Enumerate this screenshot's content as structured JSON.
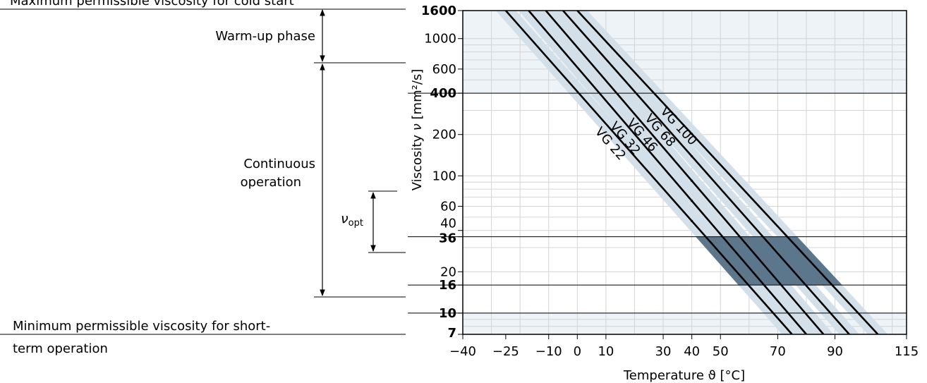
{
  "annotations": {
    "cold_start": "Maximum permissible viscosity for cold start",
    "warm_up": "Warm-up phase",
    "continuous_line1": "Continuous",
    "continuous_line2": "operation",
    "nu_opt_symbol": "ν",
    "nu_opt_sub": "opt",
    "min_line1": "Minimum permissible viscosity for short-",
    "min_line2": "term operation"
  },
  "chart_data": {
    "type": "line",
    "title": "",
    "xlabel": "Temperature ϑ [°C]",
    "ylabel_prefix": "Viscosity ",
    "ylabel_symbol": "ν",
    "ylabel_unit": " [mm²/s]",
    "x_scale": "linear",
    "y_scale": "log",
    "xlim": [
      -40,
      115
    ],
    "ylim": [
      7,
      1600
    ],
    "grid": true,
    "x_ticks": [
      {
        "value": -40,
        "label": "−40"
      },
      {
        "value": -25,
        "label": "−25"
      },
      {
        "value": -10,
        "label": "−10"
      },
      {
        "value": 0,
        "label": "0"
      },
      {
        "value": 10,
        "label": "10"
      },
      {
        "value": 30,
        "label": "30"
      },
      {
        "value": 40,
        "label": "40"
      },
      {
        "value": 50,
        "label": "50"
      },
      {
        "value": 70,
        "label": "70"
      },
      {
        "value": 90,
        "label": "90"
      },
      {
        "value": 115,
        "label": "115"
      }
    ],
    "y_ticks": [
      {
        "value": 1600,
        "label": "1600",
        "bold": true
      },
      {
        "value": 1000,
        "label": "1000",
        "bold": false
      },
      {
        "value": 600,
        "label": "600",
        "bold": false
      },
      {
        "value": 400,
        "label": "400",
        "bold": true
      },
      {
        "value": 200,
        "label": "200",
        "bold": false
      },
      {
        "value": 100,
        "label": "100",
        "bold": false
      },
      {
        "value": 60,
        "label": "60",
        "bold": false
      },
      {
        "value": 40,
        "label": "40",
        "bold": false
      },
      {
        "value": 36,
        "label": "36",
        "bold": true
      },
      {
        "value": 20,
        "label": "20",
        "bold": false
      },
      {
        "value": 16,
        "label": "16",
        "bold": true
      },
      {
        "value": 10,
        "label": "10",
        "bold": true
      },
      {
        "value": 7,
        "label": "7",
        "bold": true
      }
    ],
    "series": [
      {
        "name": "VG 22",
        "points": [
          [
            -25,
            1600
          ],
          [
            75,
            7
          ]
        ]
      },
      {
        "name": "VG 32",
        "points": [
          [
            -17,
            1600
          ],
          [
            80,
            7
          ]
        ]
      },
      {
        "name": "VG 46",
        "points": [
          [
            -11,
            1600
          ],
          [
            86,
            7
          ]
        ]
      },
      {
        "name": "VG 68",
        "points": [
          [
            -5,
            1600
          ],
          [
            95,
            7
          ]
        ]
      },
      {
        "name": "VG 100",
        "points": [
          [
            0,
            1600
          ],
          [
            105,
            7
          ]
        ]
      }
    ],
    "band_half_width_c": 3.5,
    "regions": {
      "cold_start_zone": [
        400,
        1600
      ],
      "optimum_range": [
        16,
        36
      ],
      "short_term_zone": [
        7,
        10
      ]
    },
    "colors": {
      "zone_fill": "#eef3f7",
      "band_fill": "#d3e0ea",
      "optimum_fill": "#5c778c",
      "grid": "#d4d4d4",
      "line": "#000000"
    }
  }
}
